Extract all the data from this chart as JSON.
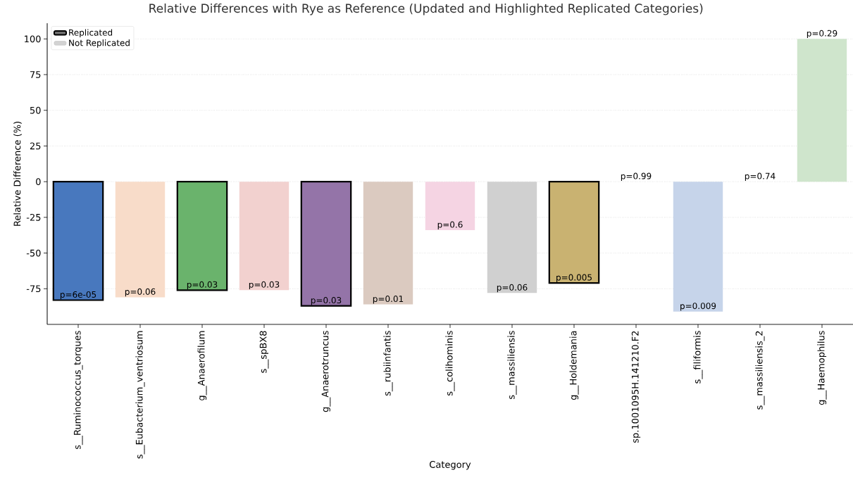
{
  "chart_data": {
    "type": "bar",
    "title": "Relative Differences with Rye as Reference (Updated and Highlighted Replicated Categories)",
    "xlabel": "Category",
    "ylabel": "Relative Difference (%)",
    "categories": [
      "s__Ruminococcus_torques",
      "s__Eubacterium_ventriosum",
      "g__Anaerofilum",
      "s__spBX8",
      "g__Anaerotruncus",
      "s__rubiinfantis",
      "s__colihominis",
      "s__massiliensis",
      "g__Holdemania",
      "sp.1001095H.141210.F2",
      "s__filiformis",
      "s__massiliensis_2",
      "g__Haemophilus"
    ],
    "series": [
      {
        "name": "Replicated",
        "color": "#707070",
        "values": [
          -83,
          null,
          -76,
          null,
          -87,
          null,
          null,
          null,
          -71,
          null,
          null,
          null,
          null
        ],
        "colors": [
          "#4878be",
          null,
          "#6ab36c",
          null,
          "#9474a8",
          null,
          null,
          null,
          "#c9b271",
          null,
          null,
          null,
          null
        ]
      },
      {
        "name": "Not Replicated",
        "color": "#d3d3d3",
        "values": [
          null,
          -81,
          null,
          -76,
          null,
          -86,
          -34,
          -78,
          null,
          0,
          -91,
          0,
          100
        ],
        "colors": [
          null,
          "#f8dcc9",
          null,
          "#f2d1cf",
          null,
          "#dbcac0",
          "#f5d4e3",
          "#d0d0d0",
          null,
          "#fdf3d6",
          "#c6d4ea",
          "#e6f3fa",
          "#cfe5cc"
        ]
      }
    ],
    "annotations": [
      {
        "text": "p=6e-05",
        "x": "s__Ruminococcus_torques",
        "y": -83
      },
      {
        "text": "p=0.06",
        "x": "s__Eubacterium_ventriosum",
        "y": -81
      },
      {
        "text": "p=0.03",
        "x": "g__Anaerofilum",
        "y": -76
      },
      {
        "text": "p=0.03",
        "x": "s__spBX8",
        "y": -76
      },
      {
        "text": "p=0.03",
        "x": "g__Anaerotruncus",
        "y": -87
      },
      {
        "text": "p=0.01",
        "x": "s__rubiinfantis",
        "y": -86
      },
      {
        "text": "p=0.6",
        "x": "s__colihominis",
        "y": -34
      },
      {
        "text": "p=0.06",
        "x": "s__massiliensis",
        "y": -78
      },
      {
        "text": "p=0.005",
        "x": "g__Holdemania",
        "y": -71
      },
      {
        "text": "p=0.99",
        "x": "sp.1001095H.141210.F2",
        "y": 0
      },
      {
        "text": "p=0.009",
        "x": "s__filiformis",
        "y": -91
      },
      {
        "text": "p=0.74",
        "x": "s__massiliensis_2",
        "y": 0
      },
      {
        "text": "p=0.29",
        "x": "g__Haemophilus",
        "y": 100
      }
    ],
    "ylim": [
      -100,
      111
    ],
    "yticks": [
      -75,
      -50,
      -25,
      0,
      25,
      50,
      75,
      100
    ],
    "grid": "y",
    "legend": "top left"
  }
}
